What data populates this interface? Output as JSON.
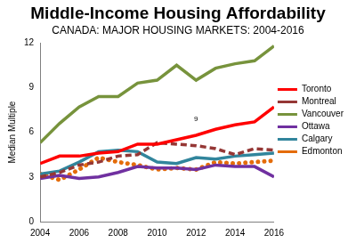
{
  "chart_data": {
    "type": "line",
    "title": "Middle-Income Housing Affordability",
    "subtitle": "CANADA: MAJOR HOUSING MARKETS: 2004-2016",
    "y_label": "Median Multiple",
    "x": [
      2004,
      2005,
      2006,
      2007,
      2008,
      2009,
      2010,
      2011,
      2012,
      2013,
      2014,
      2015,
      2016
    ],
    "xlim": [
      2004,
      2016
    ],
    "xticks": [
      2004,
      2006,
      2008,
      2010,
      2012,
      2014,
      2016
    ],
    "ylim": [
      0,
      12
    ],
    "yticks": [
      0,
      3,
      6,
      9,
      12
    ],
    "grid": false,
    "legend": "right",
    "annotations": [
      {
        "text": "9",
        "x": 2012,
        "y": 6.9
      }
    ],
    "series": [
      {
        "name": "Toronto",
        "color": "#ff0000",
        "line_style": "solid",
        "values": [
          3.9,
          4.4,
          4.4,
          4.6,
          4.7,
          5.2,
          5.2,
          5.5,
          5.8,
          6.2,
          6.5,
          6.7,
          7.7
        ]
      },
      {
        "name": "Montreal",
        "color": "#953735",
        "line_style": "dashed",
        "values": [
          3.0,
          3.3,
          3.8,
          4.0,
          4.4,
          4.5,
          5.3,
          5.2,
          5.1,
          4.9,
          4.5,
          4.9,
          4.8
        ]
      },
      {
        "name": "Vancouver",
        "color": "#77933c",
        "line_style": "solid",
        "values": [
          5.3,
          6.6,
          7.7,
          8.4,
          8.4,
          9.3,
          9.5,
          10.5,
          9.5,
          10.3,
          10.6,
          10.8,
          11.8
        ]
      },
      {
        "name": "Ottawa",
        "color": "#7030a0",
        "line_style": "solid",
        "values": [
          2.9,
          3.1,
          2.9,
          3.0,
          3.3,
          3.7,
          3.6,
          3.6,
          3.5,
          3.8,
          3.7,
          3.7,
          3.0
        ]
      },
      {
        "name": "Calgary",
        "color": "#31859c",
        "line_style": "solid",
        "values": [
          3.2,
          3.4,
          4.0,
          4.7,
          4.8,
          4.7,
          4.0,
          3.9,
          4.3,
          4.2,
          4.4,
          4.5,
          4.6
        ]
      },
      {
        "name": "Edmonton",
        "color": "#e46c0a",
        "line_style": "dotted",
        "values": [
          3.2,
          2.8,
          3.5,
          4.3,
          4.0,
          3.8,
          3.5,
          3.6,
          3.5,
          4.0,
          3.9,
          4.0,
          4.1
        ]
      }
    ]
  }
}
